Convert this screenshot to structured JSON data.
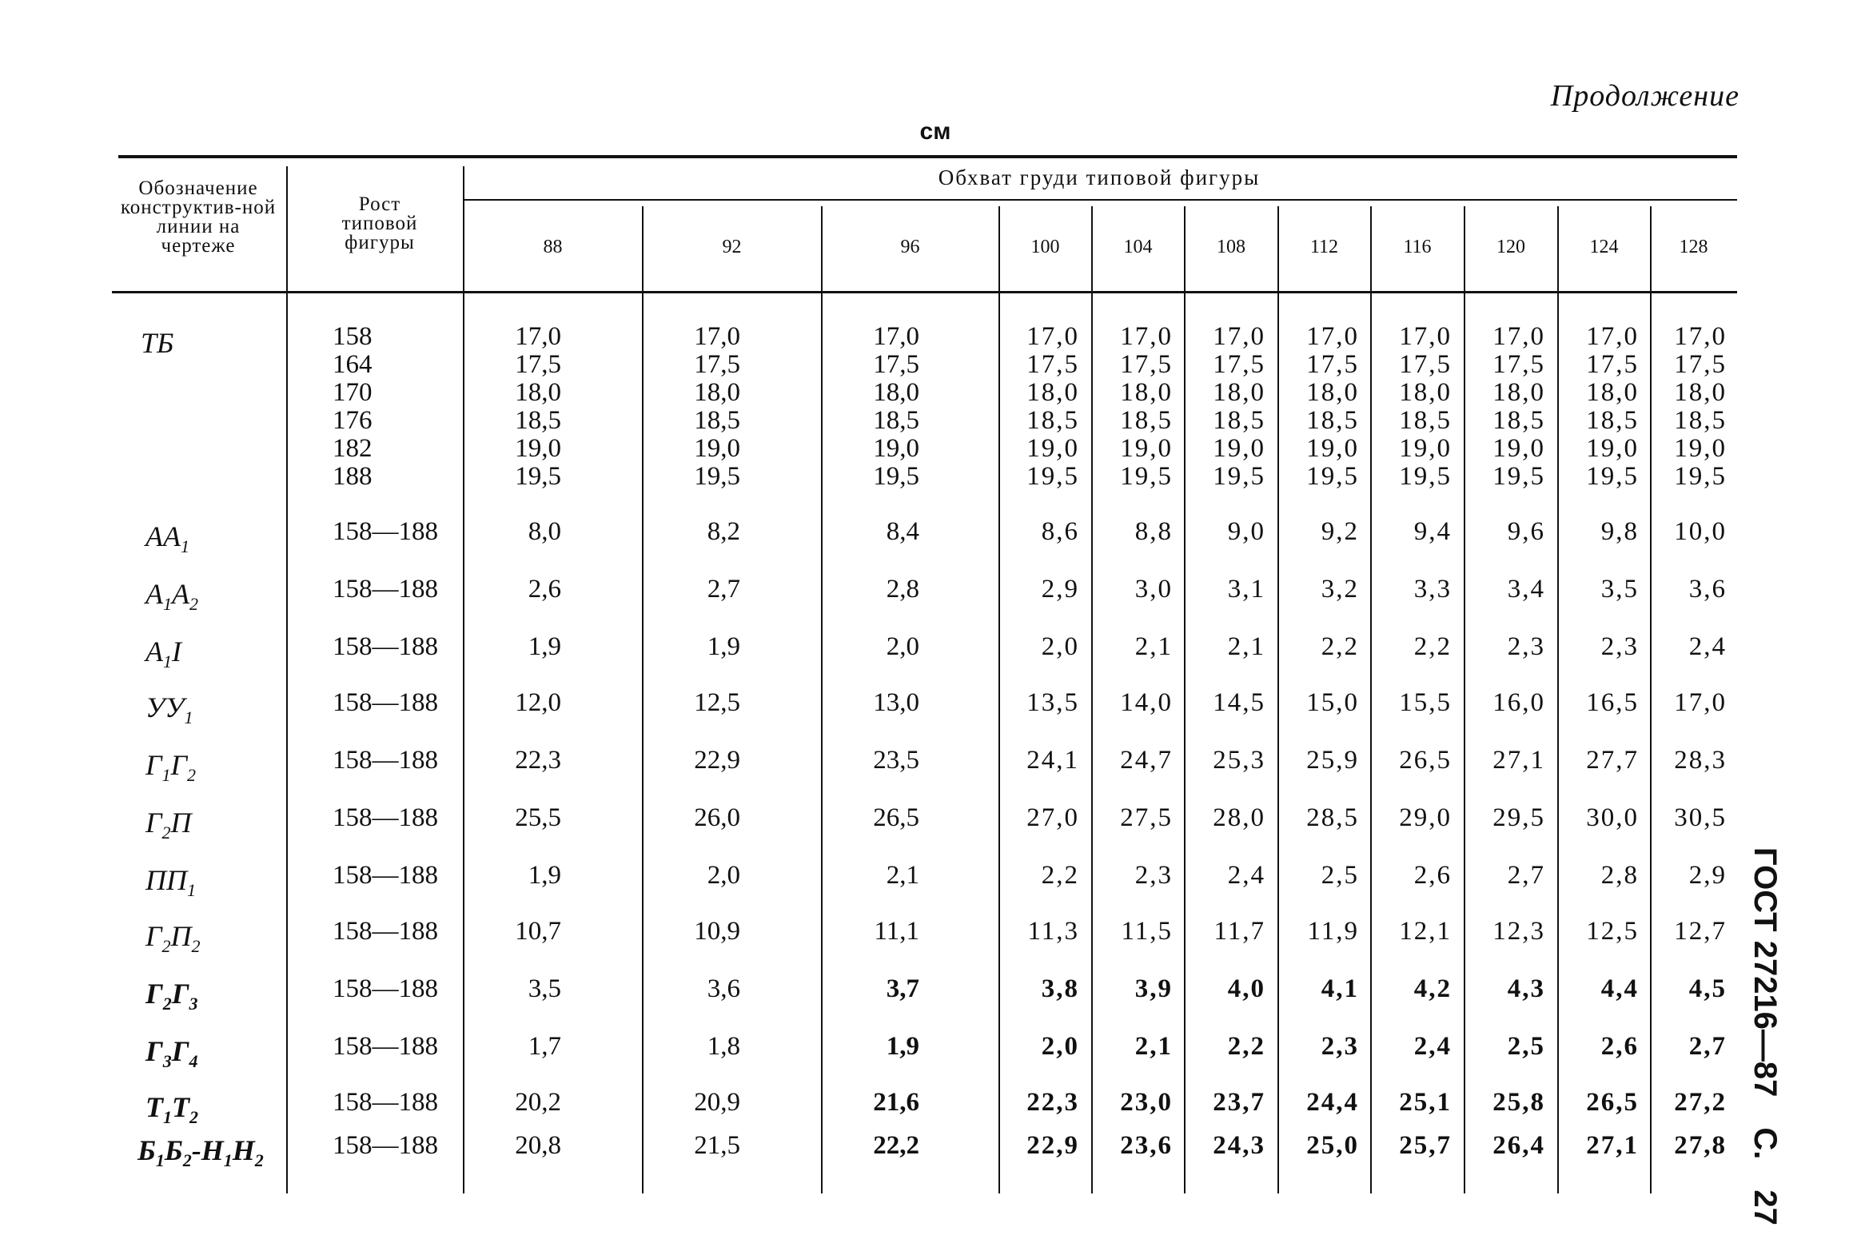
{
  "header": {
    "continuation": "Продолжение",
    "unit": "см",
    "side_title": [
      "ГОСТ 27216—87",
      "С.",
      "27"
    ]
  },
  "table": {
    "col_designation": "Обозначение конструктив-ной линии на чертеже",
    "col_height": "Рост типовой фигуры",
    "chest_title": "Обхват груди типовой фигуры",
    "chest_sizes": [
      "88",
      "92",
      "96",
      "100",
      "104",
      "108",
      "112",
      "116",
      "120",
      "124",
      "128"
    ],
    "first_row": {
      "label": "ТБ",
      "heights": [
        "158",
        "164",
        "170",
        "176",
        "182",
        "188"
      ],
      "values": [
        [
          "17,0",
          "17,5",
          "18,0",
          "18,5",
          "19,0",
          "19,5"
        ],
        [
          "17,0",
          "17,5",
          "18,0",
          "18,5",
          "19,0",
          "19,5"
        ],
        [
          "17,0",
          "17,5",
          "18,0",
          "18,5",
          "19,0",
          "19,5"
        ],
        [
          "17,0",
          "17,5",
          "18,0",
          "18,5",
          "19,0",
          "19,5"
        ],
        [
          "17,0",
          "17,5",
          "18,0",
          "18,5",
          "19,0",
          "19,5"
        ],
        [
          "17,0",
          "17,5",
          "18,0",
          "18,5",
          "19,0",
          "19,5"
        ],
        [
          "17,0",
          "17,5",
          "18,0",
          "18,5",
          "19,0",
          "19,5"
        ],
        [
          "17,0",
          "17,5",
          "18,0",
          "18,5",
          "19,0",
          "19,5"
        ],
        [
          "17,0",
          "17,5",
          "18,0",
          "18,5",
          "19,0",
          "19,5"
        ],
        [
          "17,0",
          "17,5",
          "18,0",
          "18,5",
          "19,0",
          "19,5"
        ],
        [
          "17,0",
          "17,5",
          "18,0",
          "18,5",
          "19,0",
          "19,5"
        ]
      ]
    },
    "rows": [
      {
        "label": "АА",
        "sub": "1",
        "height": "158—188",
        "values": [
          "8,0",
          "8,2",
          "8,4",
          "8,6",
          "8,8",
          "9,0",
          "9,2",
          "9,4",
          "9,6",
          "9,8",
          "10,0"
        ]
      },
      {
        "label": "А1А2",
        "height": "158—188",
        "values": [
          "2,6",
          "2,7",
          "2,8",
          "2,9",
          "3,0",
          "3,1",
          "3,2",
          "3,3",
          "3,4",
          "3,5",
          "3,6"
        ]
      },
      {
        "label": "А1I",
        "height": "158—188",
        "values": [
          "1,9",
          "1,9",
          "2,0",
          "2,0",
          "2,1",
          "2,1",
          "2,2",
          "2,2",
          "2,3",
          "2,3",
          "2,4"
        ]
      },
      {
        "label": "УУ1",
        "height": "158—188",
        "values": [
          "12,0",
          "12,5",
          "13,0",
          "13,5",
          "14,0",
          "14,5",
          "15,0",
          "15,5",
          "16,0",
          "16,5",
          "17,0"
        ]
      },
      {
        "label": "Г1Г2",
        "height": "158—188",
        "values": [
          "22,3",
          "22,9",
          "23,5",
          "24,1",
          "24,7",
          "25,3",
          "25,9",
          "26,5",
          "27,1",
          "27,7",
          "28,3"
        ]
      },
      {
        "label": "Г2П",
        "height": "158—188",
        "values": [
          "25,5",
          "26,0",
          "26,5",
          "27,0",
          "27,5",
          "28,0",
          "28,5",
          "29,0",
          "29,5",
          "30,0",
          "30,5"
        ]
      },
      {
        "label": "ПП1",
        "height": "158—188",
        "values": [
          "1,9",
          "2,0",
          "2,1",
          "2,2",
          "2,3",
          "2,4",
          "2,5",
          "2,6",
          "2,7",
          "2,8",
          "2,9"
        ]
      },
      {
        "label": "Г2П2",
        "height": "158—188",
        "values": [
          "10,7",
          "10,9",
          "11,1",
          "11,3",
          "11,5",
          "11,7",
          "11,9",
          "12,1",
          "12,3",
          "12,5",
          "12,7"
        ]
      },
      {
        "label": "Г2Г3",
        "height": "158—188",
        "values": [
          "3,5",
          "3,6",
          "3,7",
          "3,8",
          "3,9",
          "4,0",
          "4,1",
          "4,2",
          "4,3",
          "4,4",
          "4,5"
        ]
      },
      {
        "label": "Г3Г4",
        "height": "158—188",
        "values": [
          "1,7",
          "1,8",
          "1,9",
          "2,0",
          "2,1",
          "2,2",
          "2,3",
          "2,4",
          "2,5",
          "2,6",
          "2,7"
        ]
      },
      {
        "label": "Т1Т2",
        "height": "158—188",
        "values": [
          "20,2",
          "20,9",
          "21,6",
          "22,3",
          "23,0",
          "23,7",
          "24,4",
          "25,1",
          "25,8",
          "26,5",
          "27,2"
        ]
      },
      {
        "label": "Б1Б2-Н1Н2",
        "height": "158—188",
        "values": [
          "20,8",
          "21,5",
          "22,2",
          "22,9",
          "23,6",
          "24,3",
          "25,0",
          "25,7",
          "26,4",
          "27,1",
          "27,8"
        ]
      }
    ]
  }
}
